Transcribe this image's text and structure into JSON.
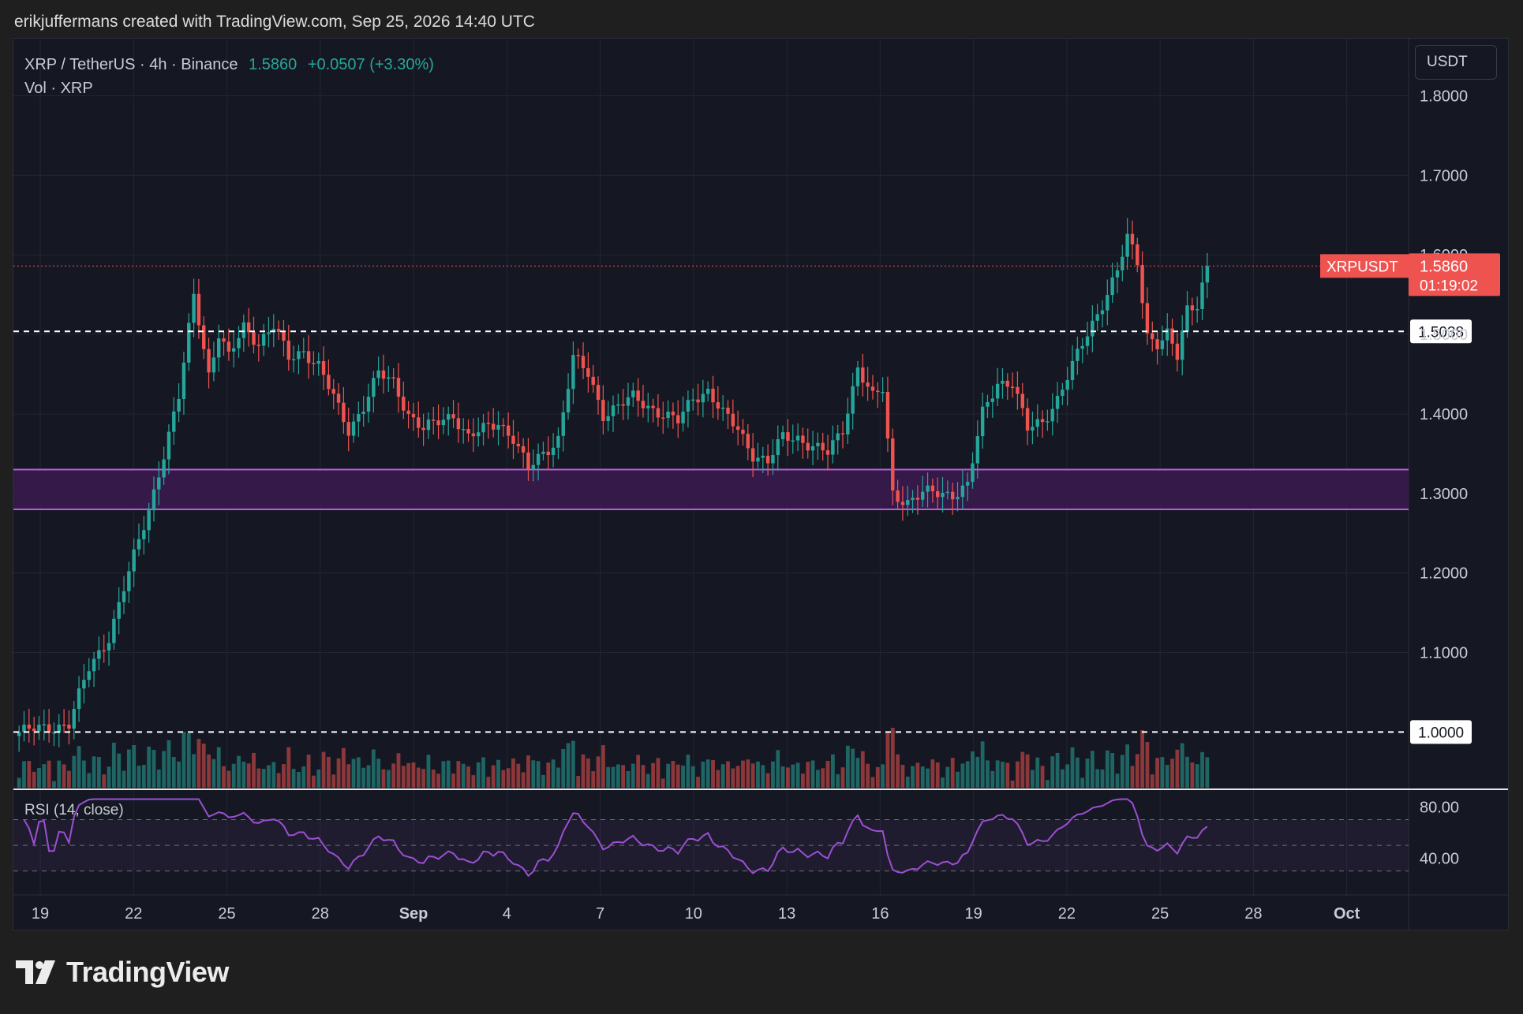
{
  "header": {
    "credit": "erikjuffermans created with TradingView.com, Sep 25, 2026 14:40 UTC"
  },
  "legend": {
    "symbol_line": "XRP / TetherUS · 4h · Binance",
    "last_price": "1.5860",
    "change": "+0.0507 (+3.30%)",
    "volume_label": "Vol · XRP"
  },
  "currency_button": "USDT",
  "price_tag": {
    "symbol": "XRPUSDT",
    "price": "1.5860",
    "countdown": "01:19:02"
  },
  "levels": [
    {
      "value": 1.5038,
      "label": "1.5038"
    },
    {
      "value": 1.0,
      "label": "1.0000"
    }
  ],
  "zone": {
    "low": 1.28,
    "high": 1.33,
    "color": "#b45fd4"
  },
  "rsi": {
    "label": "RSI (14, close)",
    "upper": 70,
    "lower": 30,
    "tick_labels": [
      "80.00",
      "40.00"
    ],
    "ticks": [
      80,
      40
    ]
  },
  "brand": "TradingView",
  "colors": {
    "up": "#26a69a",
    "down": "#ef5350",
    "rsi_line": "#9c4fd1",
    "zone_fill": "#3b1a4f",
    "zone_line": "#b45fd4"
  },
  "chart_data": {
    "type": "candlestick",
    "title": "XRP / TetherUS · 4h · Binance",
    "price_axis_ticks": [
      1.1,
      1.2,
      1.3,
      1.4,
      1.5,
      1.6,
      1.7,
      1.8
    ],
    "price_axis_labels": [
      "1.1000",
      "1.2000",
      "1.3000",
      "1.4000",
      "1.5000",
      "1.6000",
      "1.7000",
      "1.8000"
    ],
    "ylim": [
      0.93,
      1.86
    ],
    "time_axis_labels": [
      "19",
      "22",
      "25",
      "28",
      "Sep",
      "4",
      "7",
      "10",
      "13",
      "16",
      "19",
      "22",
      "25",
      "28",
      "Oct"
    ],
    "close_anchors": [
      [
        0,
        1.0
      ],
      [
        10,
        1.01
      ],
      [
        14,
        1.08
      ],
      [
        18,
        1.12
      ],
      [
        22,
        1.2
      ],
      [
        26,
        1.28
      ],
      [
        29,
        1.35
      ],
      [
        32,
        1.42
      ],
      [
        35,
        1.55
      ],
      [
        36,
        1.52
      ],
      [
        38,
        1.45
      ],
      [
        40,
        1.5
      ],
      [
        42,
        1.47
      ],
      [
        45,
        1.51
      ],
      [
        48,
        1.49
      ],
      [
        51,
        1.51
      ],
      [
        54,
        1.47
      ],
      [
        57,
        1.48
      ],
      [
        60,
        1.46
      ],
      [
        63,
        1.42
      ],
      [
        66,
        1.38
      ],
      [
        69,
        1.41
      ],
      [
        72,
        1.45
      ],
      [
        75,
        1.44
      ],
      [
        78,
        1.4
      ],
      [
        81,
        1.38
      ],
      [
        84,
        1.39
      ],
      [
        87,
        1.4
      ],
      [
        90,
        1.37
      ],
      [
        93,
        1.38
      ],
      [
        96,
        1.39
      ],
      [
        99,
        1.37
      ],
      [
        102,
        1.33
      ],
      [
        105,
        1.35
      ],
      [
        108,
        1.37
      ],
      [
        111,
        1.47
      ],
      [
        114,
        1.45
      ],
      [
        117,
        1.4
      ],
      [
        120,
        1.41
      ],
      [
        123,
        1.42
      ],
      [
        126,
        1.41
      ],
      [
        129,
        1.4
      ],
      [
        132,
        1.39
      ],
      [
        135,
        1.42
      ],
      [
        138,
        1.43
      ],
      [
        141,
        1.4
      ],
      [
        144,
        1.38
      ],
      [
        147,
        1.35
      ],
      [
        150,
        1.34
      ],
      [
        153,
        1.37
      ],
      [
        156,
        1.37
      ],
      [
        159,
        1.36
      ],
      [
        162,
        1.35
      ],
      [
        165,
        1.38
      ],
      [
        168,
        1.46
      ],
      [
        171,
        1.42
      ],
      [
        173,
        1.43
      ],
      [
        175,
        1.3
      ],
      [
        178,
        1.29
      ],
      [
        181,
        1.3
      ],
      [
        184,
        1.3
      ],
      [
        187,
        1.3
      ],
      [
        190,
        1.31
      ],
      [
        193,
        1.4
      ],
      [
        196,
        1.44
      ],
      [
        199,
        1.44
      ],
      [
        202,
        1.38
      ],
      [
        205,
        1.39
      ],
      [
        208,
        1.42
      ],
      [
        211,
        1.46
      ],
      [
        214,
        1.5
      ],
      [
        217,
        1.54
      ],
      [
        220,
        1.58
      ],
      [
        222,
        1.62
      ],
      [
        224,
        1.59
      ],
      [
        226,
        1.5
      ],
      [
        228,
        1.49
      ],
      [
        230,
        1.5
      ],
      [
        232,
        1.47
      ],
      [
        234,
        1.53
      ],
      [
        236,
        1.54
      ],
      [
        238,
        1.59
      ]
    ],
    "candle_count": 239,
    "last_close": 1.586
  }
}
